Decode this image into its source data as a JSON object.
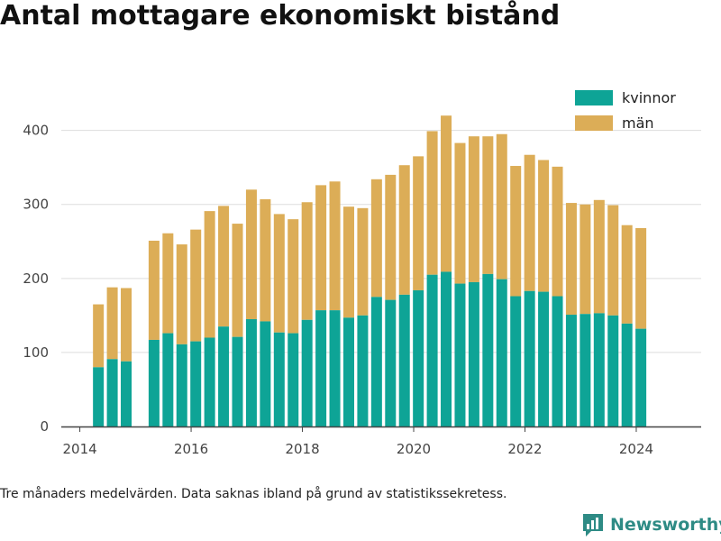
{
  "title": "Antal mottagare ekonomiskt bistånd",
  "footnote": "Tre månaders medelvärden. Data saknas ibland på grund av statistikssekretess.",
  "brand": "Newsworthy",
  "chart_data": {
    "type": "bar",
    "stacked": true,
    "x_label": "",
    "y_label": "",
    "x_ticks": [
      "2014",
      "2016",
      "2018",
      "2020",
      "2022",
      "2024"
    ],
    "y_ticks": [
      0,
      100,
      200,
      300,
      400
    ],
    "ylim": [
      0,
      430
    ],
    "xlim": [
      "2013-09",
      "2025-03"
    ],
    "grid": "horizontal",
    "legend_position": "top-right",
    "periods": [
      "2014-05",
      "2014-08",
      "2014-11",
      "2015-05",
      "2015-08",
      "2015-11",
      "2016-02",
      "2016-05",
      "2016-08",
      "2016-11",
      "2017-02",
      "2017-05",
      "2017-08",
      "2017-11",
      "2018-02",
      "2018-05",
      "2018-08",
      "2018-11",
      "2019-02",
      "2019-05",
      "2019-08",
      "2019-11",
      "2020-02",
      "2020-05",
      "2020-08",
      "2020-11",
      "2021-02",
      "2021-05",
      "2021-08",
      "2021-11",
      "2022-02",
      "2022-05",
      "2022-08",
      "2022-11",
      "2023-02",
      "2023-05",
      "2023-08",
      "2023-11",
      "2024-02"
    ],
    "series": [
      {
        "name": "kvinnor",
        "color": "#0ea496",
        "values": [
          80,
          91,
          88,
          117,
          126,
          111,
          115,
          120,
          135,
          121,
          145,
          142,
          127,
          126,
          144,
          157,
          157,
          147,
          150,
          175,
          171,
          178,
          184,
          205,
          209,
          193,
          195,
          206,
          199,
          176,
          183,
          182,
          176,
          151,
          152,
          153,
          150,
          139,
          132
        ]
      },
      {
        "name": "män",
        "color": "#dcad57",
        "values": [
          85,
          97,
          99,
          134,
          135,
          135,
          151,
          171,
          163,
          153,
          175,
          165,
          160,
          154,
          159,
          169,
          174,
          150,
          145,
          159,
          169,
          175,
          181,
          194,
          211,
          190,
          197,
          186,
          196,
          176,
          184,
          178,
          175,
          151,
          148,
          153,
          149,
          133,
          136
        ]
      }
    ]
  }
}
